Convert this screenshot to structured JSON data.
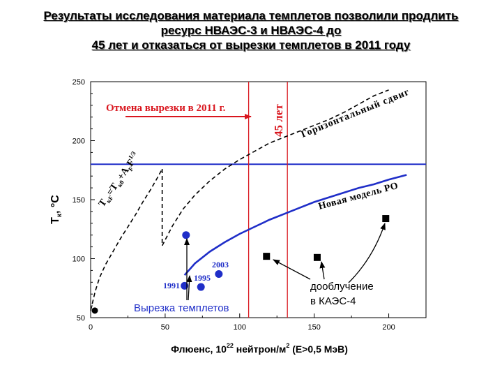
{
  "header": {
    "line1": "Результаты исследования материала темплетов позволили продлить",
    "line2": "ресурс НВАЭС-3 и НВАЭС-4 до",
    "line3": "45 лет и отказаться от вырезки темплетов в 2011 году"
  },
  "colors": {
    "blue": "#1f2ec8",
    "red": "#d9161e",
    "black": "#000000"
  },
  "chart_data": {
    "type": "scatter",
    "xlabel_main": "Флюенс, 10",
    "xlabel_sup1": "22",
    "xlabel_mid": " нейтрон/м",
    "xlabel_sup2": "2",
    "xlabel_end": " (E>0,5 МэВ)",
    "ylabel_T": "T",
    "ylabel_sub": "к",
    "ylabel_unit": ", °C",
    "xlim": [
      0,
      225
    ],
    "ylim": [
      50,
      250
    ],
    "x_ticks": [
      "0",
      "50",
      "100",
      "150",
      "200"
    ],
    "y_ticks": [
      "50",
      "100",
      "150",
      "200",
      "250"
    ],
    "x_tick_values": [
      0,
      50,
      100,
      150,
      200
    ],
    "y_tick_values": [
      50,
      100,
      150,
      200,
      250
    ],
    "hline_limit": 180,
    "vlines": [
      106,
      132
    ],
    "templet_points": [
      {
        "label": "",
        "x": 64,
        "y": 120
      },
      {
        "label": "1991",
        "x": 63,
        "y": 77
      },
      {
        "label": "1995",
        "x": 74,
        "y": 76
      },
      {
        "label": "2003",
        "x": 86,
        "y": 87
      }
    ],
    "kaes_points": [
      {
        "x": 118,
        "y": 102
      },
      {
        "x": 152,
        "y": 101
      },
      {
        "x": 198,
        "y": 134
      }
    ],
    "origin_point": {
      "x": 0,
      "y": 56
    },
    "new_model_curve": [
      [
        63,
        86
      ],
      [
        70,
        96
      ],
      [
        80,
        106
      ],
      [
        90,
        114
      ],
      [
        100,
        121
      ],
      [
        110,
        127
      ],
      [
        120,
        133
      ],
      [
        130,
        138
      ],
      [
        140,
        143
      ],
      [
        150,
        148
      ],
      [
        160,
        152
      ],
      [
        170,
        156
      ],
      [
        180,
        160
      ],
      [
        190,
        163
      ],
      [
        200,
        167
      ],
      [
        212,
        171
      ]
    ],
    "dashed_curve_1": [
      [
        0,
        56
      ],
      [
        3,
        72
      ],
      [
        6,
        84
      ],
      [
        10,
        95
      ],
      [
        15,
        106
      ],
      [
        20,
        117
      ],
      [
        25,
        127
      ],
      [
        30,
        137
      ],
      [
        35,
        148
      ],
      [
        40,
        158
      ],
      [
        45,
        169
      ],
      [
        48,
        176
      ]
    ],
    "dashed_curve_2": [
      [
        48,
        111
      ],
      [
        55,
        128
      ],
      [
        62,
        142
      ],
      [
        70,
        154
      ],
      [
        80,
        166
      ],
      [
        90,
        176
      ],
      [
        100,
        184
      ],
      [
        110,
        191
      ],
      [
        120,
        198
      ],
      [
        130,
        203
      ],
      [
        140,
        208
      ],
      [
        150,
        213
      ],
      [
        160,
        218
      ],
      [
        170,
        224
      ],
      [
        180,
        231
      ],
      [
        190,
        238
      ],
      [
        200,
        243
      ]
    ],
    "annotations": {
      "cancel_text": "Отмена вырезки в 2011 г.",
      "years45": "45 лет",
      "horizontal_shift": "Горизонтальный сдвиг",
      "new_model": "Новая модель РО",
      "formula_main": "T",
      "formula_sub1": "кF",
      "formula_mid": "=T",
      "formula_sub2": "к0",
      "formula_plus": "+A",
      "formula_sub3": "F",
      "formula_F": "F",
      "formula_exp": "1/3",
      "label_1991": "1991",
      "label_1995": "1995",
      "label_2003": "2003",
      "templet_cut": "Вырезка темплетов",
      "irradiation_line1": "дооблучение",
      "irradiation_line2": "в КАЭС-4"
    }
  }
}
